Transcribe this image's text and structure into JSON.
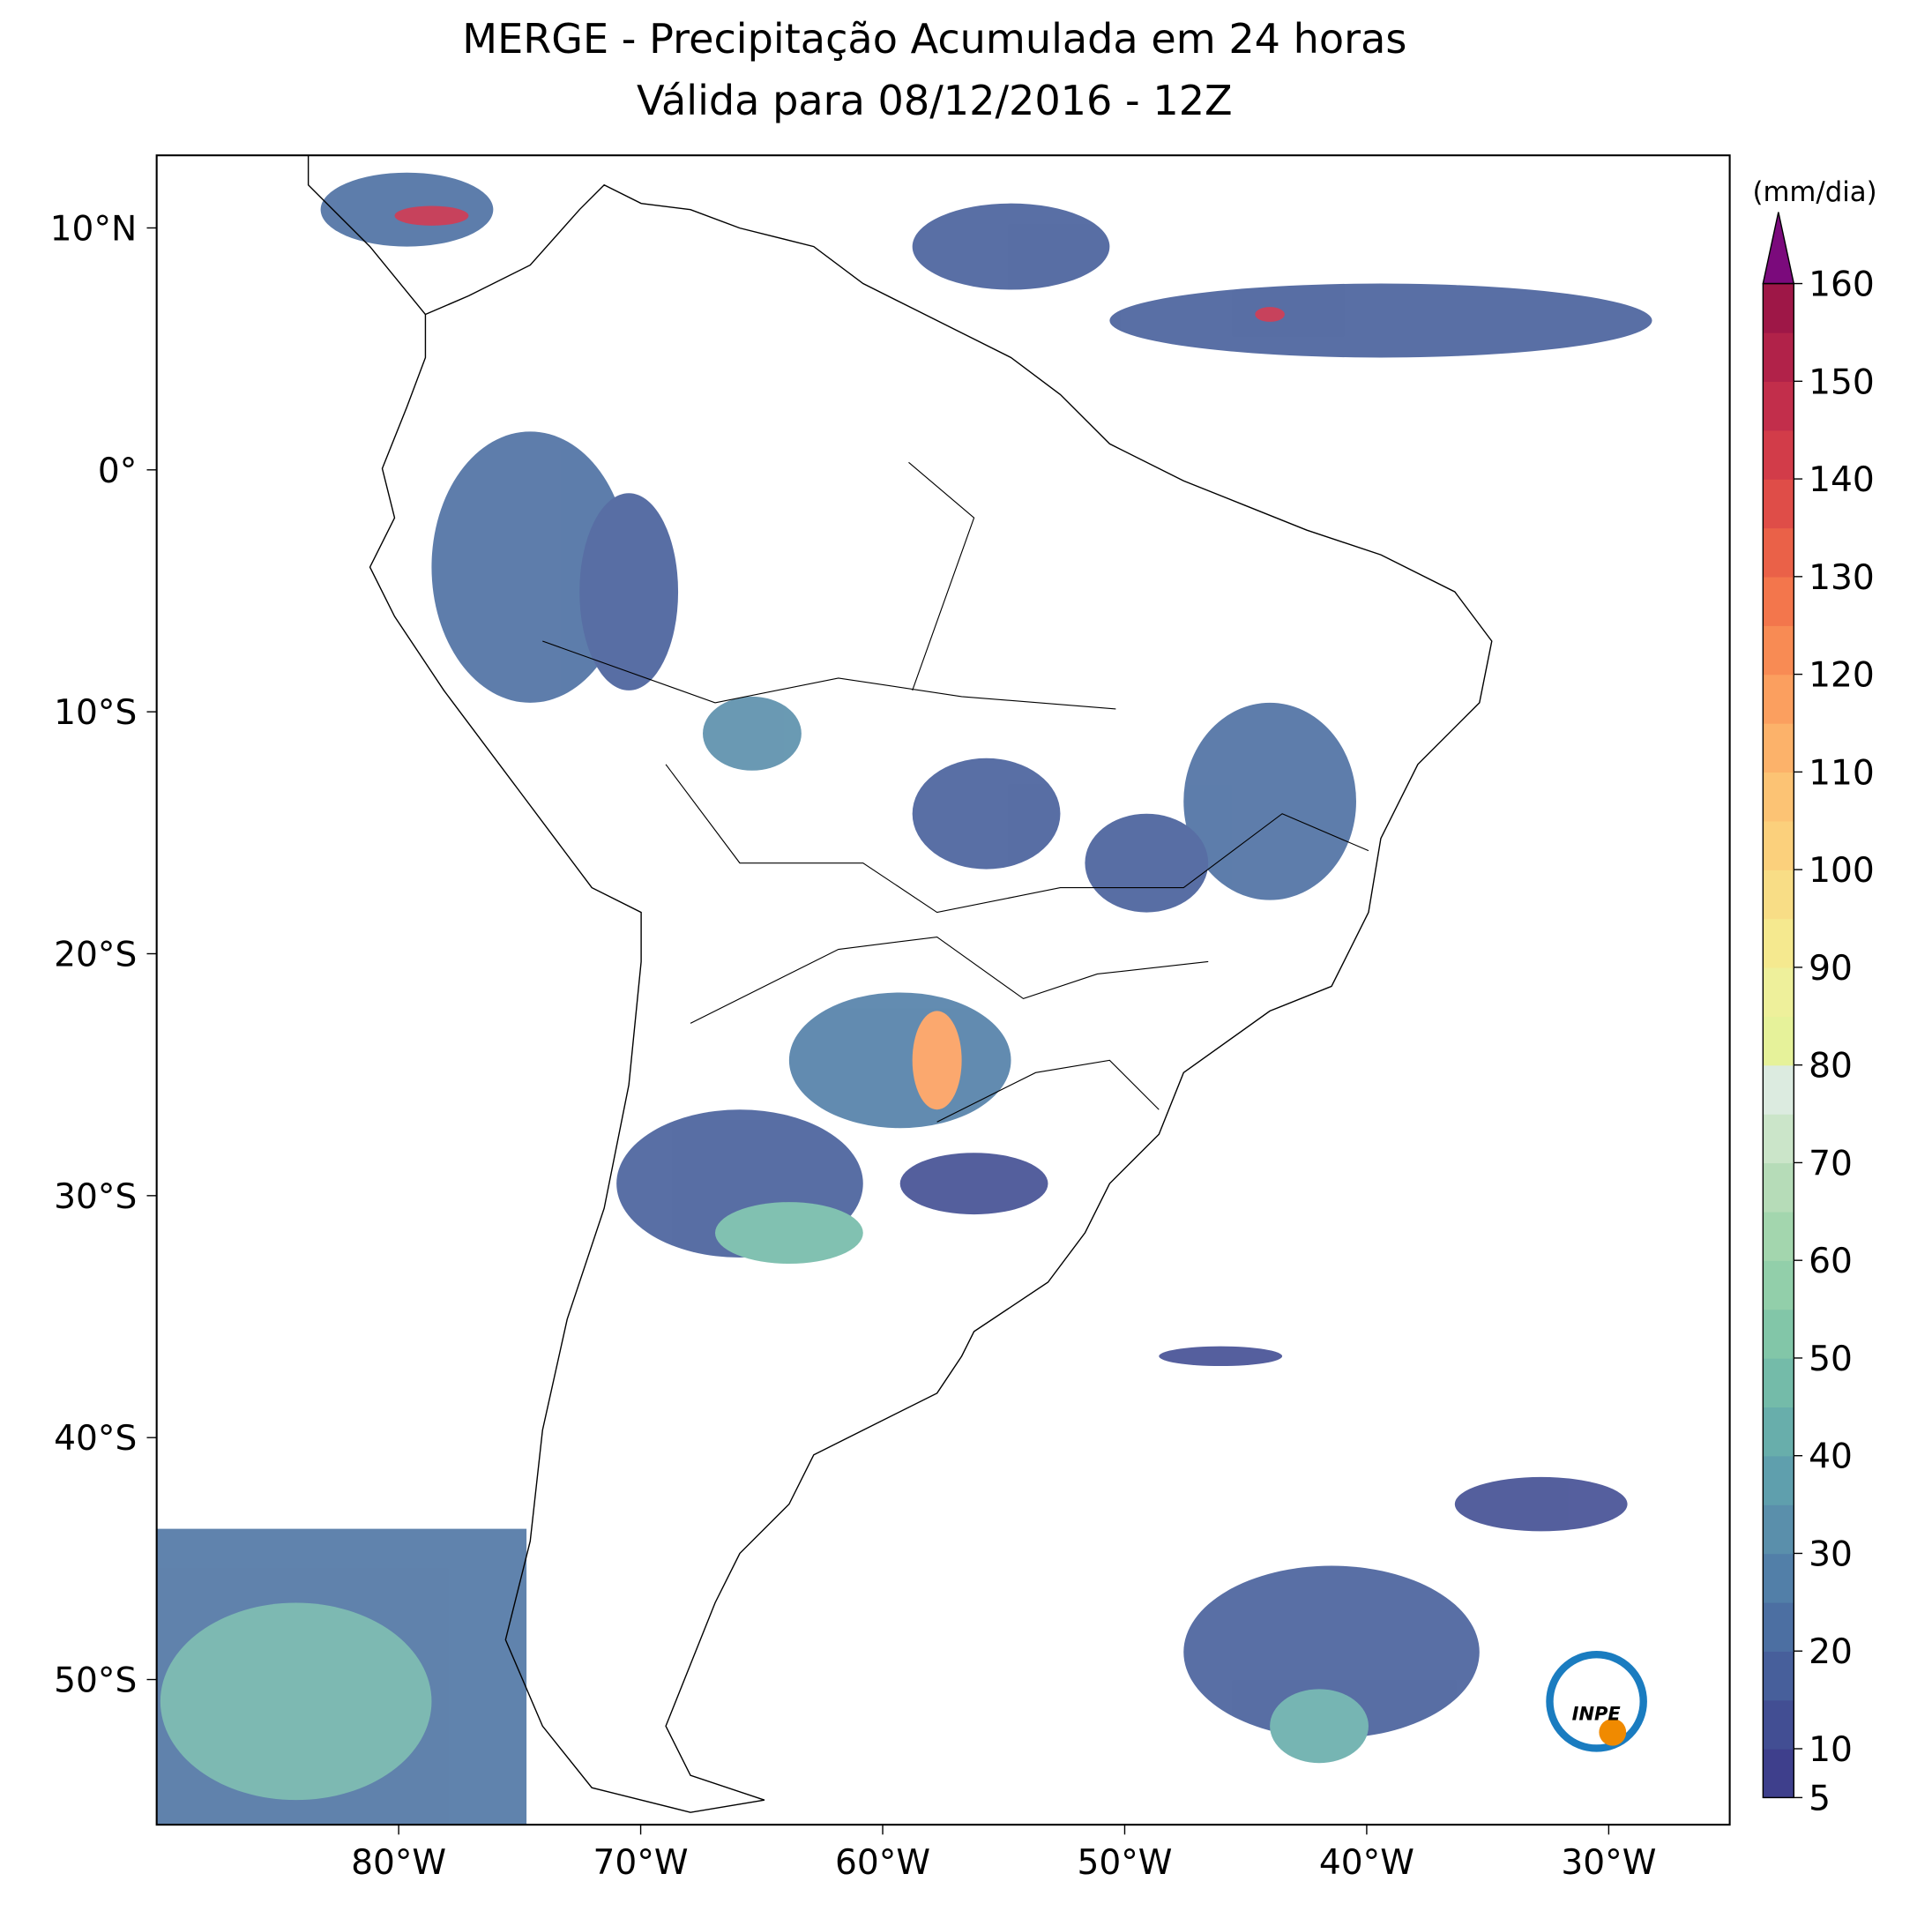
{
  "chart_data": {
    "type": "map",
    "title": "MERGE - Precipitação Acumulada em 24 horas",
    "subtitle": "Válida para 08/12/2016 - 12Z",
    "xlim": [
      -90,
      -25
    ],
    "ylim": [
      -56,
      13
    ],
    "xticks": [
      {
        "value": -80,
        "label": "80°W"
      },
      {
        "value": -70,
        "label": "70°W"
      },
      {
        "value": -60,
        "label": "60°W"
      },
      {
        "value": -50,
        "label": "50°W"
      },
      {
        "value": -40,
        "label": "40°W"
      },
      {
        "value": -30,
        "label": "30°W"
      }
    ],
    "yticks": [
      {
        "value": 10,
        "label": "10°N"
      },
      {
        "value": 0,
        "label": "0°"
      },
      {
        "value": -10,
        "label": "10°S"
      },
      {
        "value": -20,
        "label": "20°S"
      },
      {
        "value": -30,
        "label": "30°S"
      },
      {
        "value": -40,
        "label": "40°S"
      },
      {
        "value": -50,
        "label": "50°S"
      }
    ],
    "colorbar": {
      "label": "(mm/dia)",
      "lim": [
        5,
        160
      ],
      "ticks": [
        5,
        10,
        20,
        30,
        40,
        50,
        60,
        70,
        80,
        90,
        100,
        110,
        120,
        130,
        140,
        150,
        160
      ],
      "colors": [
        "#3e3f8c",
        "#424e93",
        "#475f9b",
        "#4c6fa2",
        "#527fa8",
        "#5a8fab",
        "#5f9fad",
        "#68aeab",
        "#74bba9",
        "#82c6a8",
        "#92cfaa",
        "#a3d6ae",
        "#b6dcb8",
        "#cbe5c9",
        "#dcebe0",
        "#e6f29a",
        "#eef09b",
        "#f5e98f",
        "#f8dd86",
        "#fbd07c",
        "#fcc374",
        "#fcb26a",
        "#fb9f5f",
        "#f88b54",
        "#f3764c",
        "#ea6148",
        "#df4d48",
        "#d23c49",
        "#c22e4b",
        "#b12249",
        "#9e1747"
      ],
      "extend_color": "#7b0a7c"
    },
    "logo": "INPE"
  }
}
